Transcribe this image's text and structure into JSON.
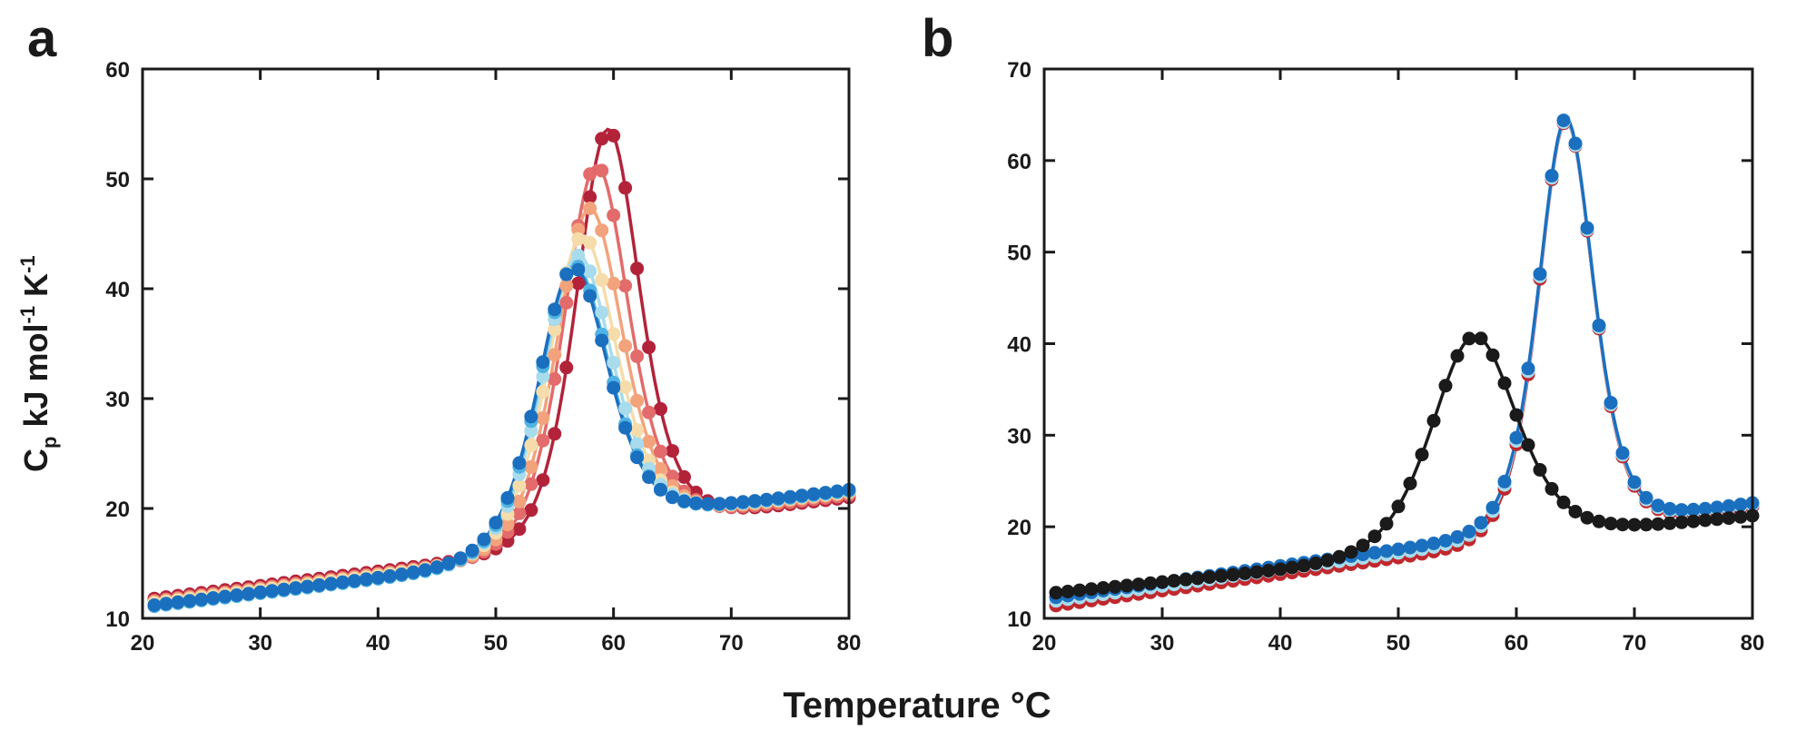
{
  "figure": {
    "xlabel": "Temperature °C",
    "ylabel": {
      "c": "C",
      "c_sub": "p",
      "kj": " kJ mol",
      "exp1": "-1",
      "k": " K",
      "exp2": "-1"
    }
  },
  "chart_data": [
    {
      "panel": "a",
      "type": "scatter",
      "xlim": [
        20,
        80
      ],
      "ylim": [
        10,
        60
      ],
      "xticks": [
        20,
        30,
        40,
        50,
        60,
        70,
        80
      ],
      "yticks": [
        10,
        20,
        30,
        40,
        50,
        60
      ],
      "grid": false,
      "x_range": [
        21,
        80
      ],
      "marker_step": 1,
      "series": [
        {
          "color": "#b2233a",
          "peak": 54.5,
          "tm": 59.5,
          "w": 3.6,
          "base0": 11.8,
          "base1": 21.0,
          "drift": 0.13
        },
        {
          "color": "#e36b6b",
          "peak": 51.2,
          "tm": 58.5,
          "w": 3.7,
          "base0": 11.6,
          "base1": 21.2,
          "drift": 0.13
        },
        {
          "color": "#f2a37b",
          "peak": 47.3,
          "tm": 57.9,
          "w": 3.8,
          "base0": 11.5,
          "base1": 21.4,
          "drift": 0.13
        },
        {
          "color": "#f5dcaa",
          "peak": 44.8,
          "tm": 57.3,
          "w": 3.9,
          "base0": 11.4,
          "base1": 21.5,
          "drift": 0.13
        },
        {
          "color": "#a8dcec",
          "peak": 43.0,
          "tm": 56.9,
          "w": 4.0,
          "base0": 11.2,
          "base1": 21.6,
          "drift": 0.13
        },
        {
          "color": "#4fb3e3",
          "peak": 42.1,
          "tm": 56.6,
          "w": 4.0,
          "base0": 11.1,
          "base1": 21.6,
          "drift": 0.13
        },
        {
          "color": "#1b6fbf",
          "peak": 41.9,
          "tm": 56.5,
          "w": 4.0,
          "base0": 11.2,
          "base1": 21.7,
          "drift": 0.13
        }
      ]
    },
    {
      "panel": "b",
      "type": "scatter",
      "xlim": [
        20,
        80
      ],
      "ylim": [
        10,
        70
      ],
      "xticks": [
        20,
        30,
        40,
        50,
        60,
        70,
        80
      ],
      "yticks": [
        10,
        20,
        30,
        40,
        50,
        60,
        70
      ],
      "grid": false,
      "x_range": [
        21,
        80
      ],
      "marker_step": 1,
      "series": [
        {
          "color": "#c0282d",
          "peak": 64.3,
          "tm": 64.2,
          "w": 3.1,
          "base0": 11.4,
          "base1": 22.2,
          "drift": 0.18
        },
        {
          "color": "#a8dcec",
          "peak": 64.4,
          "tm": 64.2,
          "w": 3.1,
          "base0": 11.9,
          "base1": 22.4,
          "drift": 0.18
        },
        {
          "color": "#1b6fbf",
          "peak": 64.6,
          "tm": 64.2,
          "w": 3.1,
          "base0": 12.3,
          "base1": 22.6,
          "drift": 0.18
        },
        {
          "color": "#1a1a1a",
          "peak": 40.8,
          "tm": 56.4,
          "w": 4.8,
          "base0": 12.8,
          "base1": 21.2,
          "drift": 0.13
        }
      ]
    }
  ]
}
